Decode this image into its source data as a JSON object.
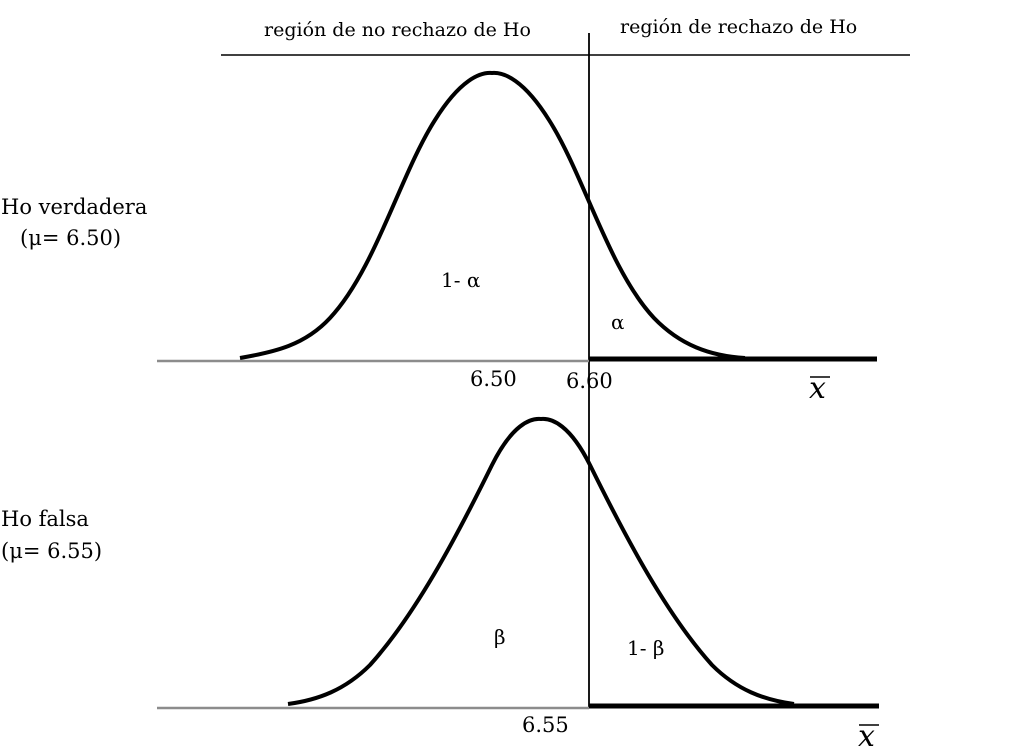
{
  "regions": {
    "no_reject": "región de no rechazo de Ho",
    "reject": "región de rechazo de Ho"
  },
  "top_panel": {
    "label_line1": "Ho verdadera",
    "label_line2": "(μ= 6.50)",
    "mean_label": "6.50",
    "critical_label": "6.60",
    "area_left": "1- α",
    "area_right": "α",
    "axis_label": "x"
  },
  "bottom_panel": {
    "label_line1": "Ho falsa",
    "label_line2": "(μ= 6.55)",
    "mean_label": "6.55",
    "area_left": "β",
    "area_right": "1- β",
    "axis_label": "x"
  }
}
